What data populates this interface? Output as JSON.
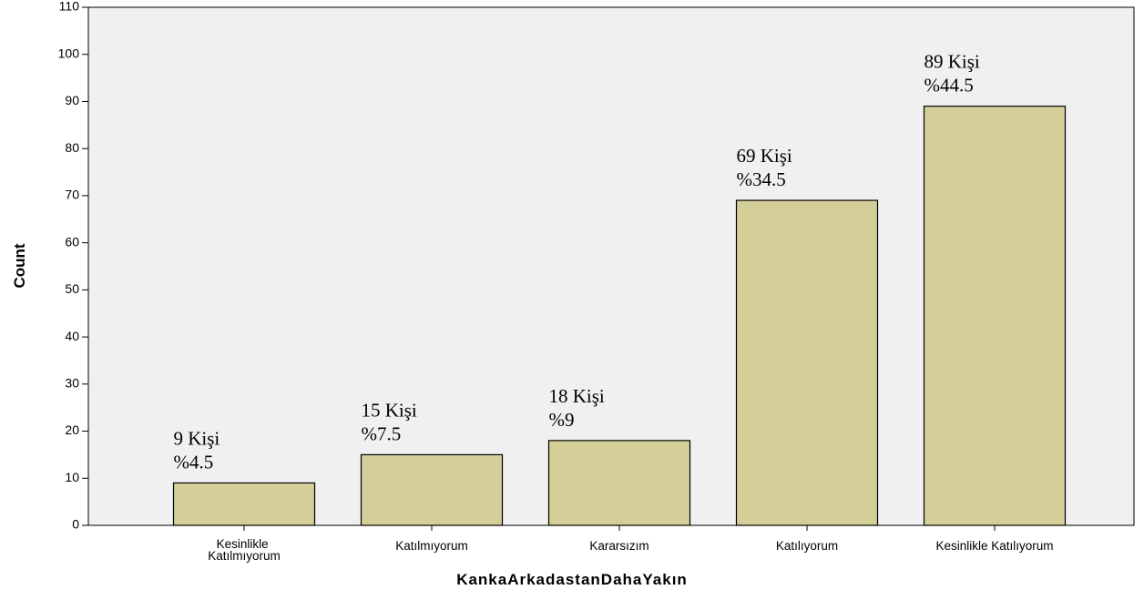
{
  "chart_data": {
    "type": "bar",
    "categories": [
      "Kesinlikle Katılmıyorum",
      "Katılmıyorum",
      "Kararsızım",
      "Katılıyorum",
      "Kesinlikle Katılıyorum"
    ],
    "values": [
      9,
      15,
      18,
      69,
      89
    ],
    "value_labels": [
      "9 Kişi",
      "15 Kişi",
      "18 Kişi",
      "69 Kişi",
      "89 Kişi"
    ],
    "percent_labels": [
      "%4.5",
      "%7.5",
      "%9",
      "%34.5",
      "%44.5"
    ],
    "color": "#d4cf98",
    "xlabel": "KankaArkadastanDahaYakın",
    "ylabel": "Count",
    "ylim": [
      0,
      110
    ],
    "yticks": [
      0,
      10,
      20,
      30,
      40,
      50,
      60,
      70,
      80,
      90,
      100,
      110
    ],
    "grid": false
  }
}
